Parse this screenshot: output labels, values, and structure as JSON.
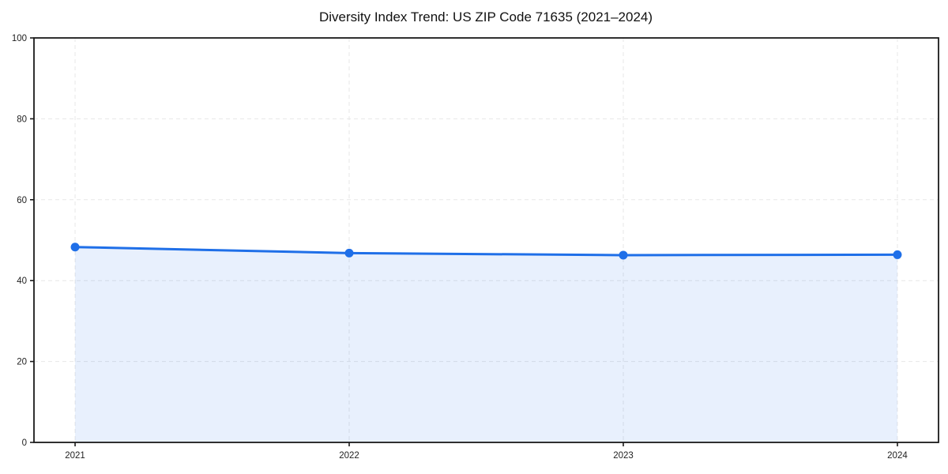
{
  "chart_data": {
    "type": "area",
    "title": "Diversity Index Trend: US ZIP Code 71635 (2021–2024)",
    "categories": [
      "2021",
      "2022",
      "2023",
      "2024"
    ],
    "x": [
      2021,
      2022,
      2023,
      2024
    ],
    "series": [
      {
        "name": "Diversity Index",
        "values": [
          48.3,
          46.8,
          46.3,
          46.4
        ]
      }
    ],
    "xlabel": "",
    "ylabel": "",
    "xlim": [
      2020.85,
      2024.15
    ],
    "ylim": [
      0,
      100
    ],
    "yticks": [
      0,
      20,
      40,
      60,
      80,
      100
    ],
    "grid": true,
    "grid_style": "dashed",
    "legend_position": "none",
    "colors": {
      "line": "#1f6fe8",
      "marker": "#1f6fe8",
      "fill": "rgba(31,111,232,0.10)",
      "grid": "#e7e7e7",
      "spine": "#1a1a1a",
      "tick_text": "#222222",
      "title_text": "#111111"
    }
  }
}
